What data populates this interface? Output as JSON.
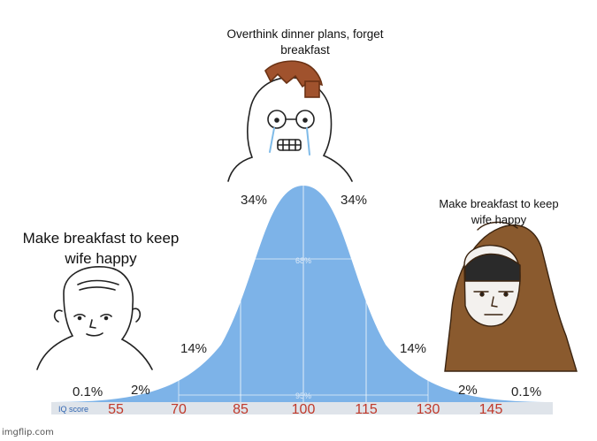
{
  "captions": {
    "left": "Make breakfast to keep wife happy",
    "top": "Overthink dinner plans, forget breakfast",
    "right": "Make breakfast to keep wife happy"
  },
  "distribution": {
    "percent_labels_left": [
      "0.1%",
      "2%",
      "14%",
      "34%"
    ],
    "percent_labels_right": [
      "34%",
      "14%",
      "2%",
      "0.1%"
    ],
    "inner_label_68": "68%",
    "inner_label_95": "95%",
    "axis_title": "IQ score",
    "iq_ticks": [
      "55",
      "70",
      "85",
      "100",
      "115",
      "130",
      "145"
    ]
  },
  "colors": {
    "curve_fill": "#7db3e8",
    "axis_band": "#dfe4ea",
    "tick_text": "#c0392b",
    "axis_title": "#2f64b0",
    "hood": "#8a5a2e"
  },
  "characters": [
    "simple-wojak",
    "crying-nerd-wojak",
    "hooded-monk-wojak"
  ],
  "watermark": "imgflip.com"
}
